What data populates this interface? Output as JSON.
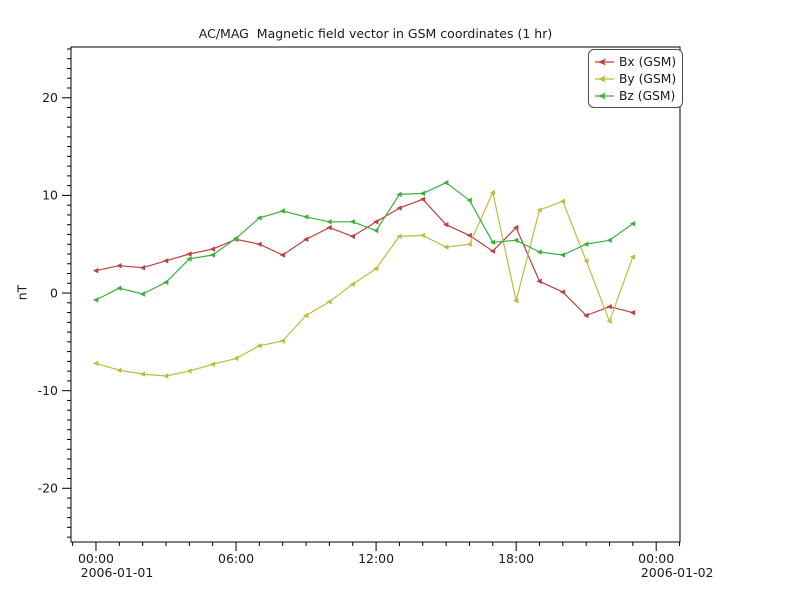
{
  "page": {
    "background_color": "#ffffff"
  },
  "chart_data": {
    "type": "line",
    "title": "AC/MAG  Magnetic field vector in GSM coordinates (1 hr)",
    "xlabel": "",
    "ylabel": "nT",
    "grid": false,
    "legend_position": "upper-right",
    "marker_style": "left-caret",
    "x_axis": {
      "unit": "hours since 2006-01-01 00:00",
      "xlim_hours": [
        -1.07,
        25.02
      ],
      "minor_tick_step_hours": 1,
      "major_ticks": [
        {
          "hour": 0,
          "label": "00:00",
          "date": "2006-01-01"
        },
        {
          "hour": 6,
          "label": "06:00"
        },
        {
          "hour": 12,
          "label": "12:00"
        },
        {
          "hour": 18,
          "label": "18:00"
        },
        {
          "hour": 24,
          "label": "00:00",
          "date": "2006-01-02"
        }
      ]
    },
    "y_axis": {
      "ylim": [
        -25.5,
        25.2
      ],
      "minor_tick_step": 1,
      "major_ticks": [
        20,
        10,
        0,
        -10,
        -20
      ]
    },
    "x_hours": [
      0,
      1,
      2,
      3,
      4,
      5,
      6,
      7,
      8,
      9,
      10,
      11,
      12,
      13,
      14,
      15,
      16,
      17,
      18,
      19,
      20,
      21,
      22,
      23
    ],
    "series": [
      {
        "name": "Bx (GSM)",
        "color": "#bf4040",
        "values": [
          2.3,
          2.8,
          2.6,
          3.3,
          4.0,
          4.5,
          5.5,
          5.0,
          3.9,
          5.5,
          6.7,
          5.8,
          7.3,
          8.7,
          9.6,
          7.0,
          5.9,
          4.3,
          6.7,
          1.2,
          0.1,
          -2.3,
          -1.4,
          -2.0
        ]
      },
      {
        "name": "By (GSM)",
        "color": "#bcbc40",
        "values": [
          -7.2,
          -7.9,
          -8.3,
          -8.5,
          -8.0,
          -7.3,
          -6.7,
          -5.4,
          -4.9,
          -2.3,
          -0.9,
          0.9,
          2.5,
          5.8,
          5.9,
          4.7,
          5.0,
          10.3,
          -0.8,
          8.5,
          9.4,
          3.3,
          -2.9,
          3.7
        ]
      },
      {
        "name": "Bz (GSM)",
        "color": "#3cb03c",
        "values": [
          -0.7,
          0.5,
          -0.1,
          1.1,
          3.5,
          3.9,
          5.6,
          7.7,
          8.4,
          7.8,
          7.3,
          7.3,
          6.4,
          10.1,
          10.2,
          11.3,
          9.5,
          5.2,
          5.4,
          4.2,
          3.9,
          5.0,
          5.4,
          7.1
        ]
      }
    ]
  }
}
